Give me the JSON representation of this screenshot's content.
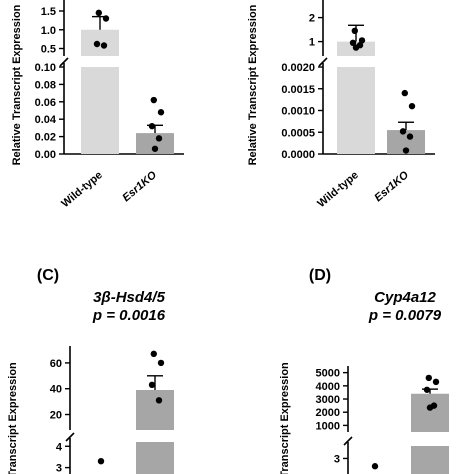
{
  "chart_data": [
    {
      "panel": "A",
      "type": "bar",
      "ylabel": "Relative Transcript Expression",
      "categories": [
        "Wild-type",
        "Esr1KO"
      ],
      "category_styles": [
        "normal",
        "italic"
      ],
      "bar_colors": [
        "#d9d9d9",
        "#a6a6a6"
      ],
      "upper_ticks": [
        "1.5",
        "1.0",
        "0.5"
      ],
      "lower_ticks": [
        "0.10",
        "0.08",
        "0.06",
        "0.04",
        "0.02",
        "0.00"
      ],
      "upper_range": [
        0.3,
        1.9
      ],
      "lower_range": [
        0,
        0.1
      ],
      "values": [
        1.0,
        0.024
      ],
      "errors": [
        0.35,
        0.009
      ],
      "points": [
        [
          1.45,
          1.3,
          0.62,
          0.58
        ],
        [
          0.062,
          0.048,
          0.032,
          0.018,
          0.006
        ]
      ]
    },
    {
      "panel": "B",
      "type": "bar",
      "ylabel": "Relative Transcript Expression",
      "categories": [
        "Wild-type",
        "Esr1KO"
      ],
      "category_styles": [
        "normal",
        "italic"
      ],
      "bar_colors": [
        "#d9d9d9",
        "#a6a6a6"
      ],
      "upper_ticks": [
        "2",
        "1"
      ],
      "lower_ticks": [
        "0.0020",
        "0.0015",
        "0.0010",
        "0.0005",
        "0.0000"
      ],
      "upper_range": [
        0.4,
        2.9
      ],
      "lower_range": [
        0,
        0.002
      ],
      "values": [
        1.0,
        0.00055
      ],
      "errors": [
        0.68,
        0.00018
      ],
      "points": [
        [
          1.45,
          1.05,
          0.95,
          0.85,
          0.75
        ],
        [
          0.0014,
          0.0011,
          0.00052,
          0.0004,
          8e-05
        ]
      ]
    },
    {
      "panel": "C",
      "type": "bar",
      "label": "(C)",
      "title_gene": "3β-Hsd4/5",
      "title_p": "p = 0.0016",
      "ylabel": "Transcript Expression",
      "upper_ticks": [
        "60",
        "40",
        "20"
      ],
      "lower_ticks": [
        "4",
        "3"
      ],
      "upper_range": [
        8,
        70
      ],
      "lower_range": [
        2.7,
        4.2
      ],
      "bar_colors": [
        "#a6a6a6"
      ],
      "values": [
        39
      ],
      "errors": [
        11
      ],
      "points": [
        [
          67,
          60,
          43,
          31
        ]
      ],
      "lower_points": [
        3.3
      ]
    },
    {
      "panel": "D",
      "type": "bar",
      "label": "(D)",
      "title_gene": "Cyp4a12",
      "title_p": "p = 0.0079",
      "ylabel": "Transcript Expression",
      "upper_ticks": [
        "5000",
        "4000",
        "3000",
        "2000",
        "1000"
      ],
      "lower_ticks": [
        "3"
      ],
      "upper_range": [
        500,
        5200
      ],
      "lower_range": [
        2.5,
        3.4
      ],
      "bar_colors": [
        "#a6a6a6"
      ],
      "values": [
        3400
      ],
      "errors": [
        350
      ],
      "points": [
        [
          4600,
          4300,
          3700,
          2500,
          2350
        ]
      ],
      "lower_points": [
        2.75
      ]
    }
  ]
}
